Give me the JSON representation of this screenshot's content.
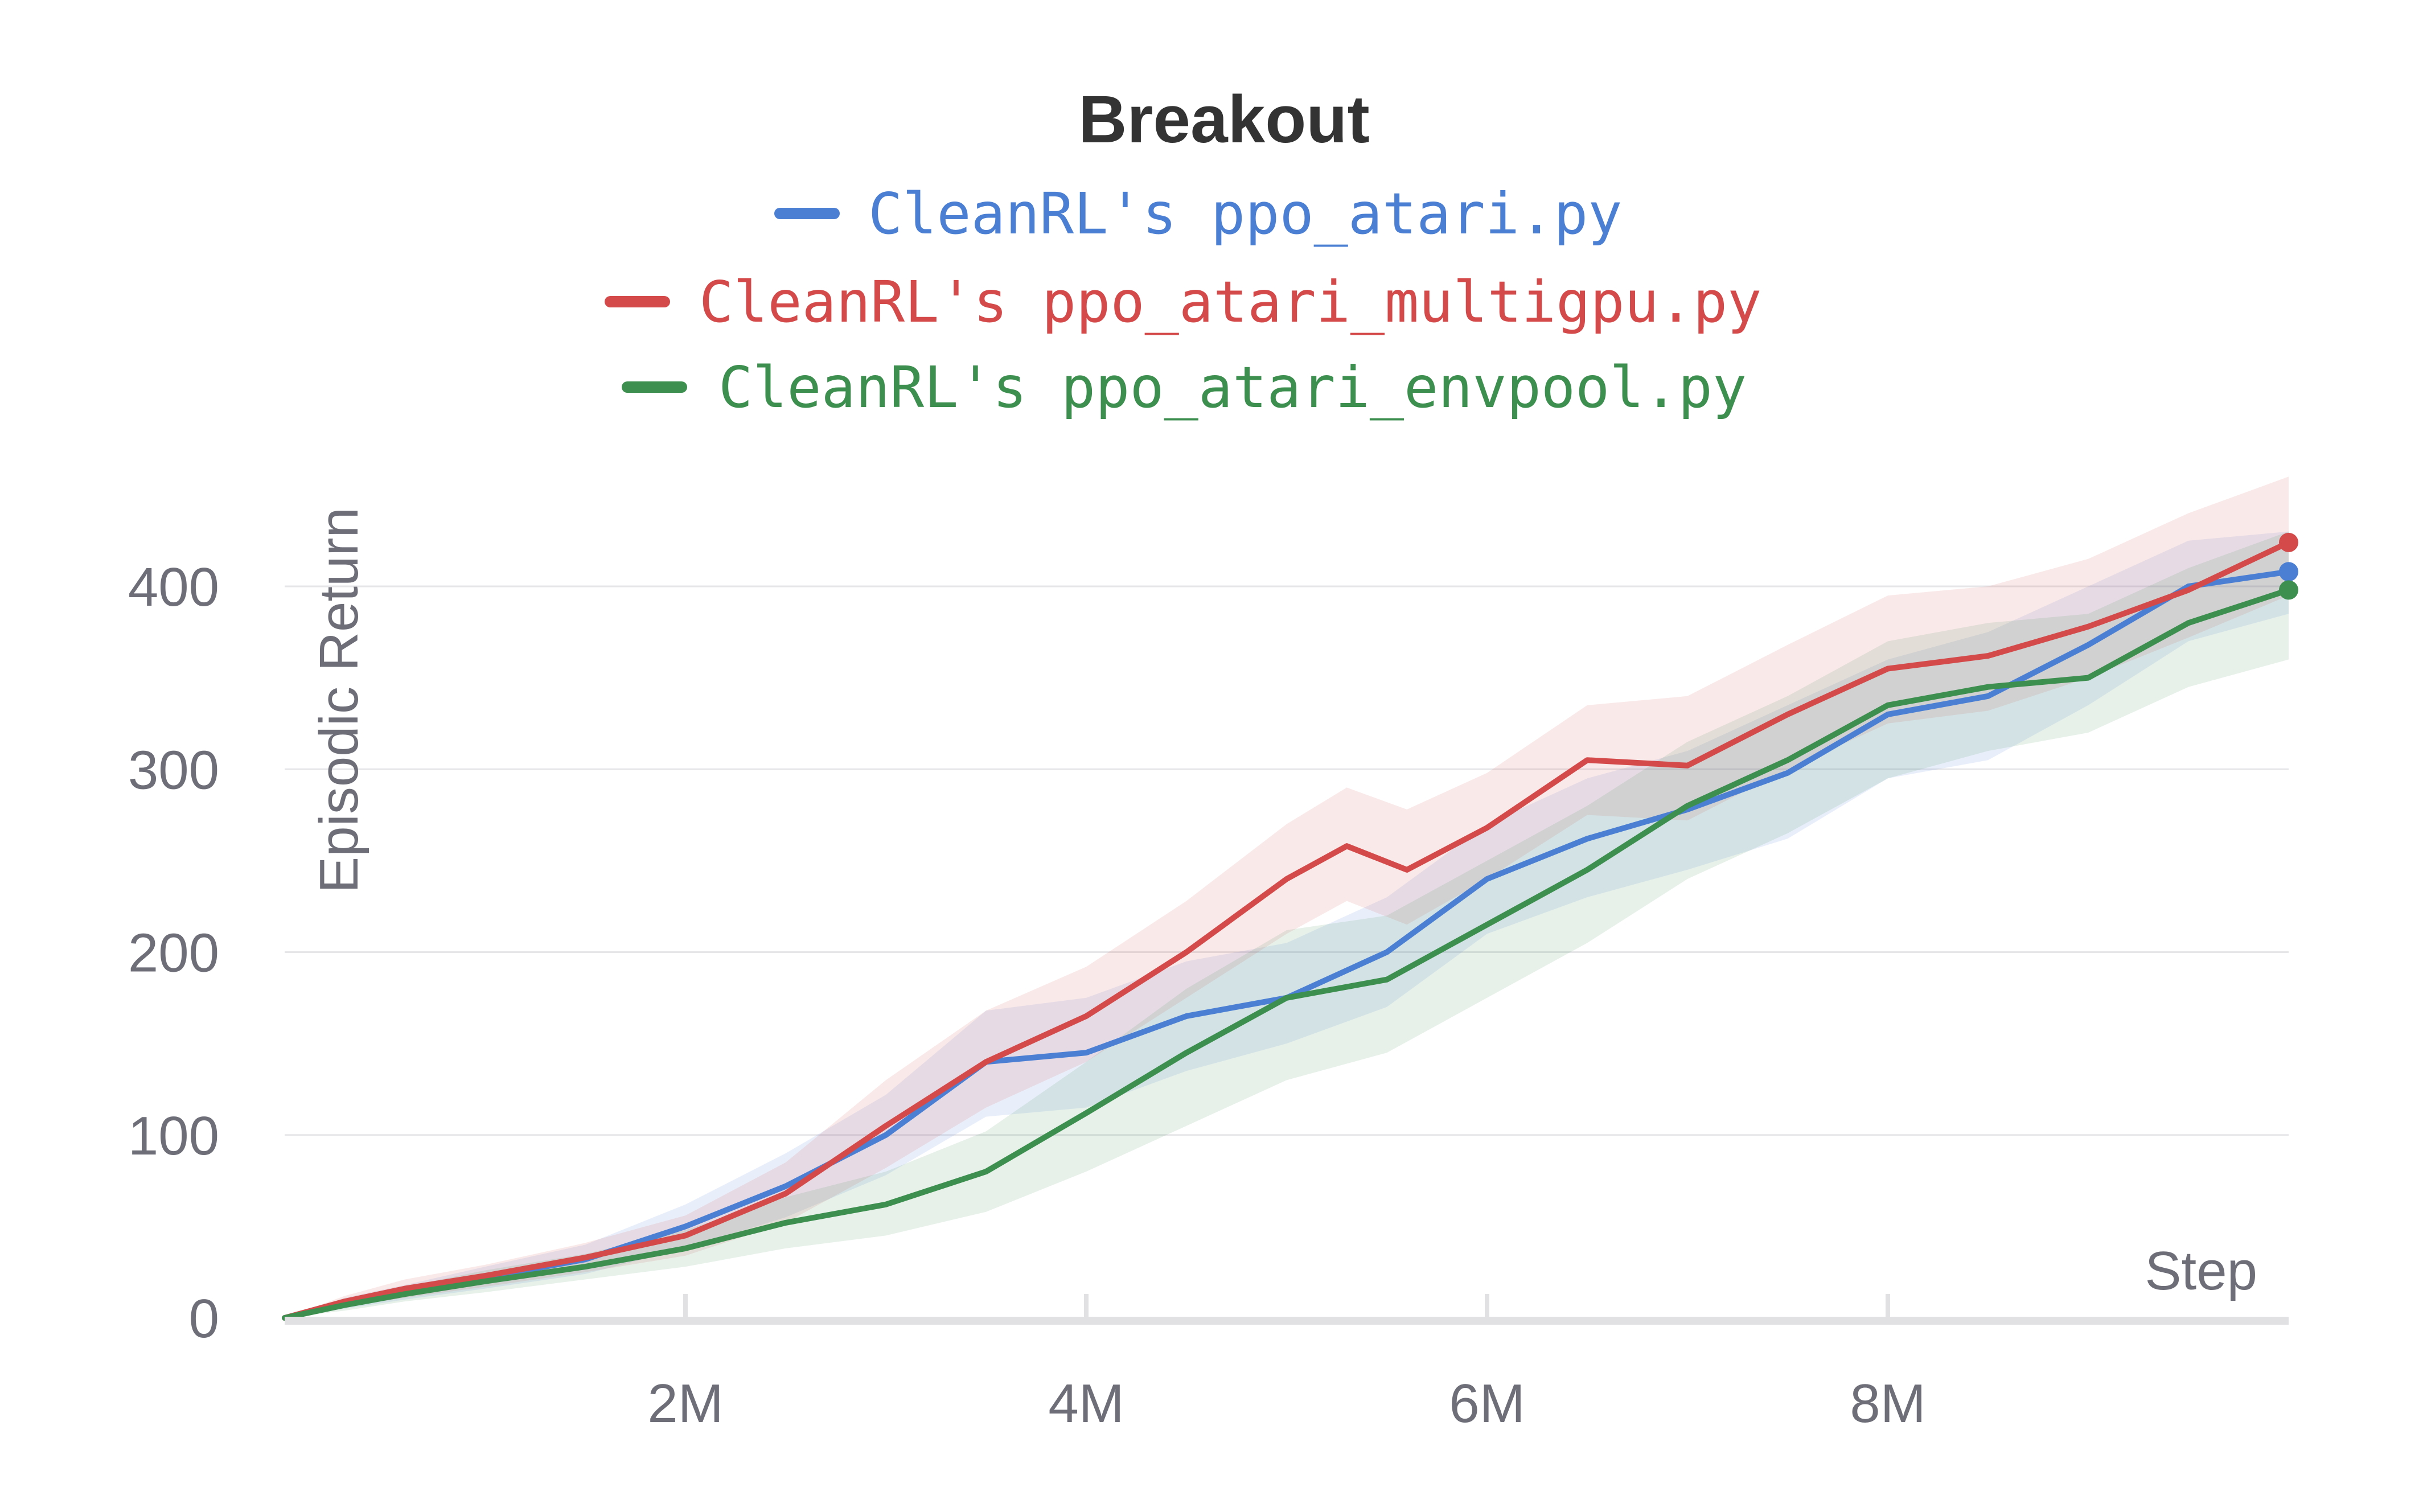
{
  "chart_data": {
    "type": "line",
    "title": "Breakout",
    "xlabel": "Step",
    "ylabel": "Episodic Return",
    "xlim": [
      0,
      10000000
    ],
    "ylim": [
      0,
      400
    ],
    "x_ticks": [
      {
        "value": 2000000,
        "label": "2M"
      },
      {
        "value": 4000000,
        "label": "4M"
      },
      {
        "value": 6000000,
        "label": "6M"
      },
      {
        "value": 8000000,
        "label": "8M"
      }
    ],
    "y_ticks": [
      {
        "value": 0,
        "label": "0"
      },
      {
        "value": 100,
        "label": "100"
      },
      {
        "value": 200,
        "label": "200"
      },
      {
        "value": 300,
        "label": "300"
      },
      {
        "value": 400,
        "label": "400"
      }
    ],
    "grid": "horizontal",
    "legend_position": "top",
    "series": [
      {
        "name": "CleanRL's ppo_atari.py",
        "color": "#4a7fd4",
        "x": [
          0,
          300000,
          600000,
          1000000,
          1500000,
          2000000,
          2500000,
          3000000,
          3500000,
          4000000,
          4500000,
          5000000,
          5500000,
          6000000,
          6500000,
          7000000,
          7500000,
          8000000,
          8500000,
          9000000,
          9500000,
          10000000
        ],
        "y": [
          0,
          8,
          14,
          22,
          32,
          50,
          72,
          100,
          140,
          145,
          165,
          175,
          200,
          240,
          262,
          278,
          298,
          330,
          340,
          368,
          400,
          408
        ],
        "lower": [
          0,
          5,
          10,
          16,
          24,
          38,
          55,
          78,
          110,
          115,
          135,
          150,
          170,
          210,
          230,
          245,
          262,
          295,
          305,
          335,
          370,
          385
        ],
        "upper": [
          0,
          11,
          18,
          28,
          40,
          62,
          90,
          122,
          168,
          175,
          195,
          205,
          230,
          270,
          295,
          310,
          335,
          360,
          375,
          400,
          425,
          430
        ]
      },
      {
        "name": "CleanRL's ppo_atari_multigpu.py",
        "color": "#d44a4a",
        "x": [
          0,
          300000,
          600000,
          1000000,
          1500000,
          2000000,
          2500000,
          3000000,
          3500000,
          4000000,
          4500000,
          5000000,
          5300000,
          5600000,
          6000000,
          6500000,
          7000000,
          7500000,
          8000000,
          8500000,
          9000000,
          9500000,
          10000000
        ],
        "y": [
          0,
          9,
          16,
          23,
          33,
          45,
          68,
          105,
          140,
          165,
          200,
          240,
          258,
          245,
          268,
          305,
          302,
          330,
          355,
          362,
          378,
          398,
          424
        ],
        "lower": [
          0,
          6,
          11,
          17,
          25,
          34,
          52,
          82,
          115,
          140,
          175,
          210,
          228,
          215,
          240,
          275,
          272,
          300,
          325,
          332,
          350,
          372,
          395
        ],
        "upper": [
          0,
          12,
          21,
          29,
          41,
          56,
          85,
          130,
          168,
          192,
          228,
          270,
          290,
          278,
          298,
          335,
          340,
          368,
          395,
          400,
          415,
          440,
          460
        ]
      },
      {
        "name": "CleanRL's ppo_atari_envpool.py",
        "color": "#3d8f4f",
        "x": [
          0,
          300000,
          600000,
          1000000,
          1500000,
          2000000,
          2500000,
          3000000,
          3500000,
          4000000,
          4500000,
          5000000,
          5500000,
          6000000,
          6500000,
          7000000,
          7500000,
          8000000,
          8500000,
          9000000,
          9500000,
          10000000
        ],
        "y": [
          0,
          7,
          13,
          20,
          28,
          38,
          52,
          62,
          80,
          112,
          145,
          175,
          185,
          215,
          245,
          280,
          305,
          335,
          345,
          350,
          380,
          398
        ],
        "lower": [
          0,
          4,
          9,
          14,
          21,
          28,
          38,
          45,
          58,
          80,
          105,
          130,
          145,
          175,
          205,
          240,
          265,
          295,
          310,
          320,
          345,
          360
        ],
        "upper": [
          0,
          10,
          17,
          26,
          35,
          48,
          66,
          80,
          102,
          140,
          180,
          212,
          220,
          250,
          280,
          315,
          340,
          370,
          380,
          385,
          410,
          430
        ]
      }
    ]
  }
}
